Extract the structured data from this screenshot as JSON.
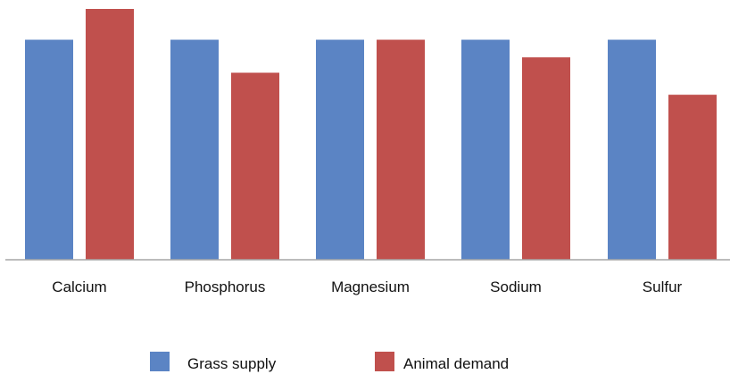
{
  "chart_data": {
    "type": "bar",
    "categories": [
      "Calcium",
      "Phosphorus",
      "Magnesium",
      "Sodium",
      "Sulfur"
    ],
    "series": [
      {
        "name": "Grass supply",
        "values": [
          100,
          100,
          100,
          100,
          100
        ],
        "color": "#5b84c4"
      },
      {
        "name": "Animal demand",
        "values": [
          114,
          85,
          100,
          92,
          75
        ],
        "color": "#c0504d"
      }
    ],
    "ylim": [
      0,
      114
    ],
    "grid": false,
    "legend_position": "bottom"
  }
}
